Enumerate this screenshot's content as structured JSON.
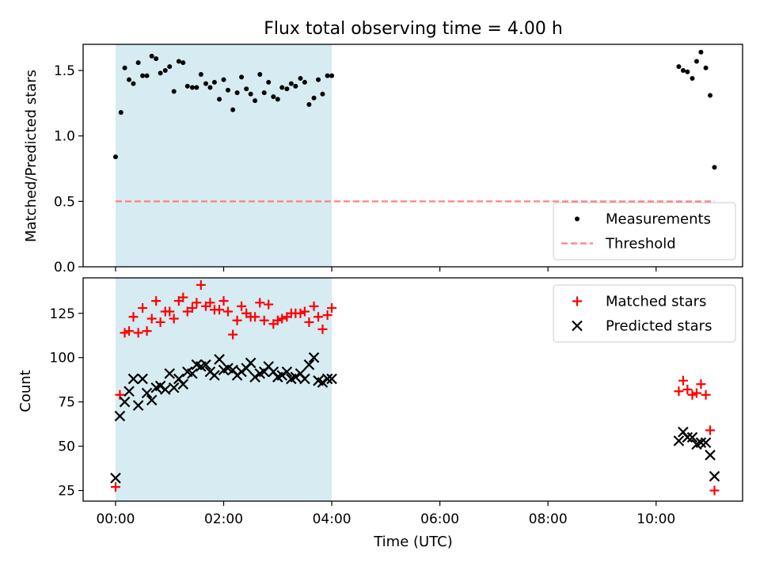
{
  "chart_data": [
    {
      "type": "scatter",
      "title": "Flux total observing time = 4.00 h",
      "xlabel": "",
      "ylabel": "Matched/Predicted stars",
      "xlim": [
        -0.6,
        11.6
      ],
      "ylim": [
        0.0,
        1.7
      ],
      "yticks": [
        0.0,
        0.5,
        1.0,
        1.5
      ],
      "ytick_labels": [
        "0.0",
        "0.5",
        "1.0",
        "1.5"
      ],
      "shaded_span": [
        0.0,
        4.0
      ],
      "legend_position": "lower-right",
      "series": [
        {
          "name": "Measurements",
          "marker": "dot",
          "color": "#000000",
          "x": [
            0.0,
            0.1,
            0.17,
            0.25,
            0.33,
            0.42,
            0.5,
            0.58,
            0.67,
            0.75,
            0.83,
            0.92,
            1.0,
            1.08,
            1.17,
            1.25,
            1.33,
            1.42,
            1.5,
            1.58,
            1.67,
            1.75,
            1.83,
            1.92,
            2.0,
            2.08,
            2.17,
            2.25,
            2.33,
            2.42,
            2.5,
            2.58,
            2.67,
            2.75,
            2.83,
            2.92,
            3.0,
            3.08,
            3.17,
            3.25,
            3.33,
            3.42,
            3.5,
            3.58,
            3.67,
            3.75,
            3.83,
            3.92,
            4.0,
            10.42,
            10.5,
            10.58,
            10.67,
            10.75,
            10.83,
            10.92,
            11.0,
            11.08
          ],
          "y": [
            0.84,
            1.18,
            1.52,
            1.43,
            1.4,
            1.56,
            1.46,
            1.46,
            1.61,
            1.59,
            1.48,
            1.5,
            1.53,
            1.34,
            1.57,
            1.56,
            1.38,
            1.37,
            1.37,
            1.47,
            1.4,
            1.37,
            1.41,
            1.28,
            1.43,
            1.35,
            1.2,
            1.33,
            1.45,
            1.36,
            1.32,
            1.27,
            1.47,
            1.33,
            1.41,
            1.3,
            1.28,
            1.37,
            1.36,
            1.4,
            1.38,
            1.44,
            1.41,
            1.24,
            1.29,
            1.43,
            1.32,
            1.46,
            1.46,
            1.53,
            1.5,
            1.49,
            1.44,
            1.57,
            1.64,
            1.52,
            1.31,
            0.76
          ]
        },
        {
          "name": "Threshold",
          "marker": "dashed-line",
          "color": "#ff8080",
          "x": [
            0.0,
            11.08
          ],
          "y": [
            0.5,
            0.5
          ]
        }
      ]
    },
    {
      "type": "scatter",
      "title": "",
      "xlabel": "Time (UTC)",
      "ylabel": "Count",
      "xlim": [
        -0.6,
        11.6
      ],
      "ylim": [
        19,
        145
      ],
      "yticks": [
        25,
        50,
        75,
        100,
        125
      ],
      "ytick_labels": [
        "25",
        "50",
        "75",
        "100",
        "125"
      ],
      "xticks": [
        0,
        2,
        4,
        6,
        8,
        10
      ],
      "xtick_labels": [
        "00:00",
        "02:00",
        "04:00",
        "06:00",
        "08:00",
        "10:00"
      ],
      "shaded_span": [
        0.0,
        4.0
      ],
      "legend_position": "upper-right",
      "series": [
        {
          "name": "Matched stars",
          "marker": "plus",
          "color": "#ff0000",
          "x": [
            0.0,
            0.08,
            0.17,
            0.25,
            0.33,
            0.42,
            0.5,
            0.58,
            0.67,
            0.75,
            0.83,
            0.92,
            1.0,
            1.08,
            1.17,
            1.25,
            1.33,
            1.42,
            1.5,
            1.58,
            1.67,
            1.75,
            1.83,
            1.92,
            2.0,
            2.08,
            2.17,
            2.25,
            2.33,
            2.42,
            2.5,
            2.58,
            2.67,
            2.75,
            2.83,
            2.92,
            3.0,
            3.08,
            3.17,
            3.25,
            3.33,
            3.42,
            3.5,
            3.58,
            3.67,
            3.75,
            3.83,
            3.92,
            4.0,
            10.42,
            10.5,
            10.58,
            10.67,
            10.75,
            10.83,
            10.92,
            11.0,
            11.08
          ],
          "y": [
            27,
            79,
            114,
            115,
            123,
            114,
            128,
            115,
            122,
            132,
            120,
            126,
            126,
            122,
            132,
            134,
            126,
            128,
            131,
            141,
            129,
            131,
            127,
            127,
            132,
            126,
            113,
            121,
            129,
            125,
            123,
            123,
            131,
            121,
            130,
            119,
            121,
            122,
            123,
            125,
            125,
            125,
            126,
            120,
            129,
            123,
            116,
            124,
            128,
            81,
            87,
            82,
            79,
            80,
            85,
            79,
            59,
            25
          ]
        },
        {
          "name": "Predicted stars",
          "marker": "x",
          "color": "#000000",
          "x": [
            0.0,
            0.08,
            0.17,
            0.25,
            0.33,
            0.42,
            0.5,
            0.58,
            0.67,
            0.75,
            0.83,
            0.92,
            1.0,
            1.08,
            1.17,
            1.25,
            1.33,
            1.42,
            1.5,
            1.58,
            1.67,
            1.75,
            1.83,
            1.92,
            2.0,
            2.08,
            2.17,
            2.25,
            2.33,
            2.42,
            2.5,
            2.58,
            2.67,
            2.75,
            2.83,
            2.92,
            3.0,
            3.08,
            3.17,
            3.25,
            3.33,
            3.42,
            3.5,
            3.58,
            3.67,
            3.75,
            3.83,
            3.92,
            4.0,
            10.42,
            10.5,
            10.58,
            10.67,
            10.75,
            10.83,
            10.92,
            11.0,
            11.08
          ],
          "y": [
            32,
            67,
            75,
            81,
            88,
            73,
            88,
            80,
            76,
            83,
            84,
            82,
            91,
            83,
            88,
            85,
            92,
            91,
            96,
            95,
            96,
            92,
            90,
            99,
            93,
            94,
            93,
            90,
            92,
            94,
            97,
            89,
            91,
            92,
            95,
            92,
            89,
            90,
            92,
            88,
            89,
            91,
            88,
            96,
            100,
            87,
            86,
            88,
            88,
            53,
            58,
            55,
            55,
            51,
            52,
            52,
            45,
            33
          ]
        }
      ]
    }
  ]
}
